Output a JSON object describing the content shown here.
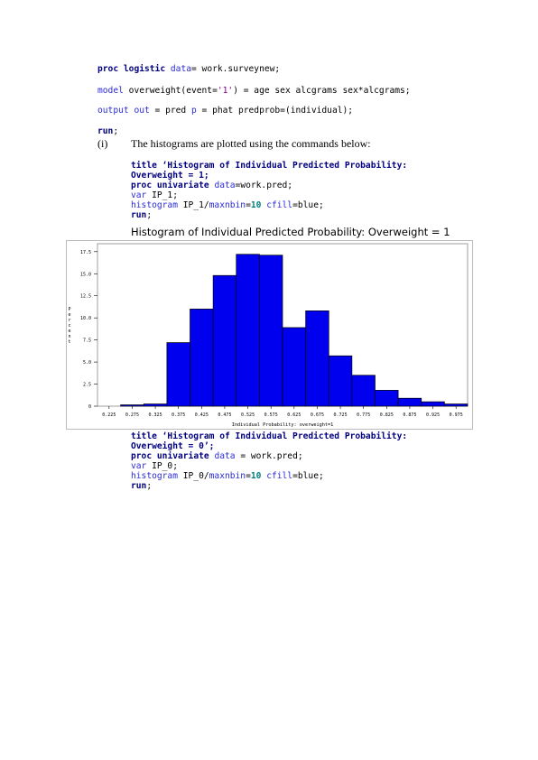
{
  "code1": {
    "line1": {
      "kw1": "proc",
      "kw2": "logistic",
      "kw3": "data",
      "rest": "= work.surveynew;"
    },
    "line2": {
      "kw": "model",
      "a": " overweight(event=",
      "str": "'1'",
      "b": ") = age sex alcgrams sex*alcgrams;"
    },
    "line3": {
      "kw1": "output",
      "kw2": "out",
      "a": " = pred ",
      "kw3": "p",
      "b": " = phat predprob=(individual);"
    },
    "line4": {
      "kw": "run",
      "rest": ";"
    }
  },
  "item": {
    "marker": "(i)",
    "text": "The histograms are plotted using the commands below:"
  },
  "code2": {
    "l1": "title ‘Histogram of Individual Predicted Probability:",
    "l2": "Overweight = 1;",
    "l3": {
      "kw1": "proc",
      "kw2": "univariate",
      "kw3": "data",
      "rest": "=work.pred;"
    },
    "l4": {
      "kw": "var",
      "rest": " IP_1;"
    },
    "l5": {
      "kw": "histogram",
      "a": " IP_1/",
      "kw2": "maxnbin",
      "b": "=",
      "num": "10",
      "kw3": "cfill",
      "c": "=blue;"
    },
    "l6": {
      "kw": "run",
      "rest": ";"
    }
  },
  "code3": {
    "l1": "title ‘Histogram of Individual Predicted Probability:",
    "l2": "Overweight = 0’;",
    "l3": {
      "kw1": "proc",
      "kw2": "univariate",
      "kw3": "data",
      "rest": " = work.pred;"
    },
    "l4": {
      "kw": "var",
      "rest": " IP_0;"
    },
    "l5": {
      "kw": "histogram",
      "a": " IP_0/",
      "kw2": "maxnbin",
      "b": "=",
      "num": "10",
      "kw3": "cfill",
      "c": "=blue;"
    },
    "l6": {
      "kw": "run",
      "rest": ";"
    }
  },
  "chart_data": {
    "type": "bar",
    "title": "Histogram of Individual Predicted Probability: Overweight = 1",
    "xlabel": "Individual Probability: overweight=1",
    "ylabel": "Percent",
    "categories": [
      "0.225",
      "0.275",
      "0.325",
      "0.375",
      "0.425",
      "0.475",
      "0.525",
      "0.575",
      "0.625",
      "0.675",
      "0.725",
      "0.775",
      "0.825",
      "0.875",
      "0.925",
      "0.975"
    ],
    "values": [
      0.0,
      0.15,
      0.25,
      7.2,
      11.0,
      14.8,
      17.2,
      17.1,
      8.9,
      10.8,
      5.7,
      3.5,
      1.8,
      0.9,
      0.5,
      0.25
    ],
    "yticks": [
      "0",
      "2.5",
      "5.0",
      "7.5",
      "10.0",
      "12.5",
      "15.0",
      "17.5"
    ],
    "ylim": [
      0,
      18.4
    ],
    "bar_color": "#0000ee",
    "grid": false
  }
}
